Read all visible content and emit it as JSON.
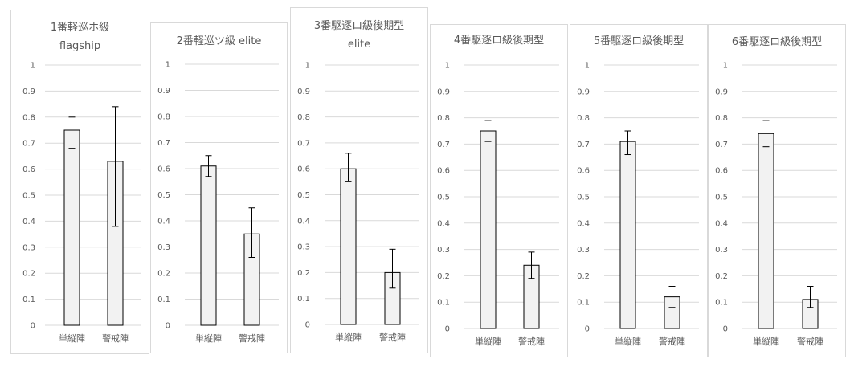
{
  "chart_data": [
    {
      "type": "bar",
      "title_lines": [
        "1番軽巡ホ級",
        "flagship"
      ],
      "categories": [
        "単縦陣",
        "警戒陣"
      ],
      "values": [
        0.75,
        0.63
      ],
      "error_low": [
        0.68,
        0.38
      ],
      "error_high": [
        0.8,
        0.84
      ],
      "ylim": [
        0,
        1
      ],
      "yticks": [
        "0",
        "0.1",
        "0.2",
        "0.3",
        "0.4",
        "0.5",
        "0.6",
        "0.7",
        "0.8",
        "0.9",
        "1"
      ],
      "bar_fill": "#f2f2f2",
      "bar_stroke": "#000000",
      "grid": true
    },
    {
      "type": "bar",
      "title_lines": [
        "2番軽巡ツ級 elite"
      ],
      "categories": [
        "単縦陣",
        "警戒陣"
      ],
      "values": [
        0.61,
        0.35
      ],
      "error_low": [
        0.57,
        0.26
      ],
      "error_high": [
        0.65,
        0.45
      ],
      "ylim": [
        0,
        1
      ],
      "yticks": [
        "0",
        "0.1",
        "0.2",
        "0.3",
        "0.4",
        "0.5",
        "0.6",
        "0.7",
        "0.8",
        "0.9",
        "1"
      ],
      "bar_fill": "#f2f2f2",
      "bar_stroke": "#000000",
      "grid": true
    },
    {
      "type": "bar",
      "title_lines": [
        "3番駆逐ロ級後期型",
        "elite"
      ],
      "categories": [
        "単縦陣",
        "警戒陣"
      ],
      "values": [
        0.6,
        0.2
      ],
      "error_low": [
        0.55,
        0.14
      ],
      "error_high": [
        0.66,
        0.29
      ],
      "ylim": [
        0,
        1
      ],
      "yticks": [
        "0",
        "0.1",
        "0.2",
        "0.3",
        "0.4",
        "0.5",
        "0.6",
        "0.7",
        "0.8",
        "0.9",
        "1"
      ],
      "bar_fill": "#f2f2f2",
      "bar_stroke": "#000000",
      "grid": true
    },
    {
      "type": "bar",
      "title_lines": [
        "4番駆逐ロ級後期型"
      ],
      "categories": [
        "単縦陣",
        "警戒陣"
      ],
      "values": [
        0.75,
        0.24
      ],
      "error_low": [
        0.71,
        0.19
      ],
      "error_high": [
        0.79,
        0.29
      ],
      "ylim": [
        0,
        1
      ],
      "yticks": [
        "0",
        "0.1",
        "0.2",
        "0.3",
        "0.4",
        "0.5",
        "0.6",
        "0.7",
        "0.8",
        "0.9",
        "1"
      ],
      "bar_fill": "#f2f2f2",
      "bar_stroke": "#000000",
      "grid": true
    },
    {
      "type": "bar",
      "title_lines": [
        "5番駆逐ロ級後期型"
      ],
      "categories": [
        "単縦陣",
        "警戒陣"
      ],
      "values": [
        0.71,
        0.12
      ],
      "error_low": [
        0.66,
        0.08
      ],
      "error_high": [
        0.75,
        0.16
      ],
      "ylim": [
        0,
        1
      ],
      "yticks": [
        "0",
        "0.1",
        "0.2",
        "0.3",
        "0.4",
        "0.5",
        "0.6",
        "0.7",
        "0.8",
        "0.9",
        "1"
      ],
      "bar_fill": "#f2f2f2",
      "bar_stroke": "#000000",
      "grid": true
    },
    {
      "type": "bar",
      "title_lines": [
        "6番駆逐ロ級後期型"
      ],
      "categories": [
        "単縦陣",
        "警戒陣"
      ],
      "values": [
        0.74,
        0.11
      ],
      "error_low": [
        0.69,
        0.08
      ],
      "error_high": [
        0.79,
        0.16
      ],
      "ylim": [
        0,
        1
      ],
      "yticks": [
        "0",
        "0.1",
        "0.2",
        "0.3",
        "0.4",
        "0.5",
        "0.6",
        "0.7",
        "0.8",
        "0.9",
        "1"
      ],
      "bar_fill": "#f2f2f2",
      "bar_stroke": "#000000",
      "grid": true
    }
  ]
}
